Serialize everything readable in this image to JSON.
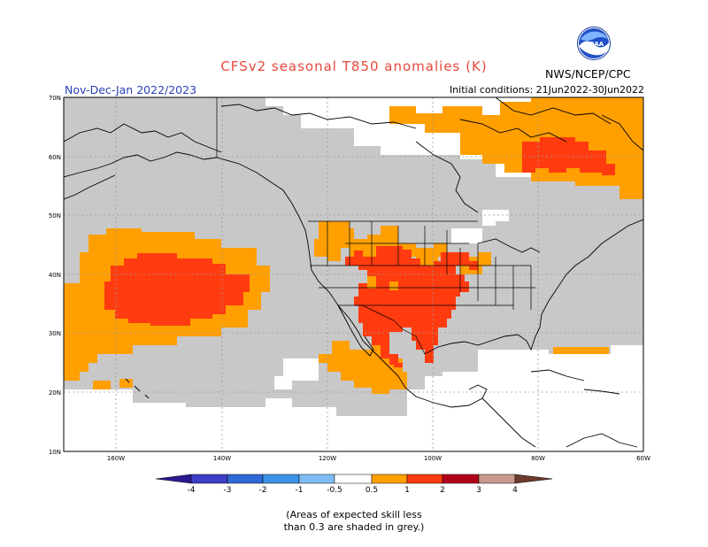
{
  "header": {
    "title": "CFSv2 seasonal T850 anomalies (K)",
    "period": "Nov-Dec-Jan 2022/2023",
    "initial_conditions": "Initial conditions: 21Jun2022-30Jun2022",
    "agency": "NWS/NCEP/CPC",
    "logo_text": "NOAA"
  },
  "axes": {
    "lat_labels": [
      "70N",
      "60N",
      "50N",
      "40N",
      "30N",
      "20N",
      "10N"
    ],
    "lon_labels": [
      "160W",
      "140W",
      "120W",
      "100W",
      "80W",
      "60W"
    ]
  },
  "legend": {
    "tick_labels": [
      "-4",
      "-3",
      "-2",
      "-1",
      "-0.5",
      "0.5",
      "1",
      "2",
      "3",
      "4"
    ],
    "colors": [
      "#2b1a8f",
      "#3d3fc7",
      "#2f6ad6",
      "#3a92e6",
      "#7fbcf3",
      "#ffffff",
      "#ff9f00",
      "#ff3b0f",
      "#b2001a",
      "#c89a8c",
      "#6d3a2e"
    ],
    "grey_color": "#c8c8c8"
  },
  "footnote": {
    "line1": "(Areas of expected skill less",
    "line2": "than 0.3 are shaded in grey.)"
  }
}
